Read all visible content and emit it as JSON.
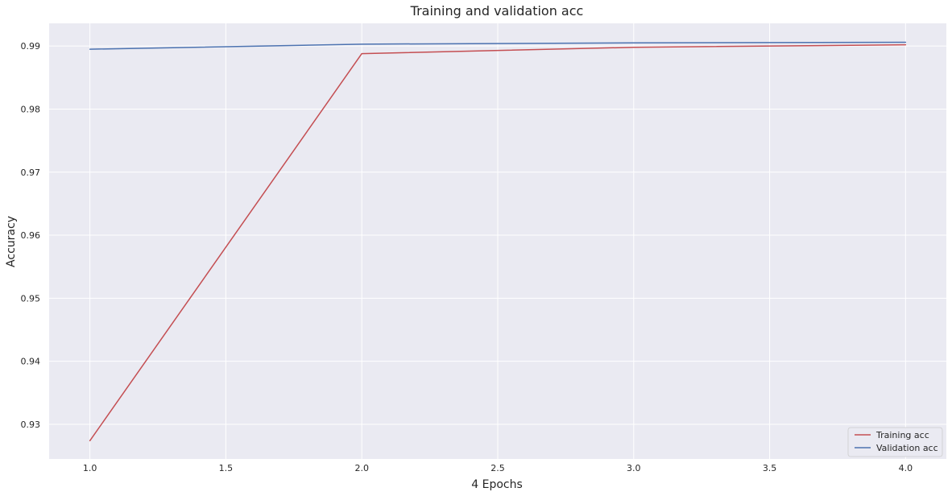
{
  "chart_data": {
    "type": "line",
    "title": "Training and validation acc",
    "xlabel": "4 Epochs",
    "ylabel": "Accuracy",
    "x": [
      1.0,
      2.0,
      3.0,
      4.0
    ],
    "xlim": [
      0.85,
      4.15
    ],
    "ylim": [
      0.9245,
      0.9936
    ],
    "xticks": [
      1.0,
      1.5,
      2.0,
      2.5,
      3.0,
      3.5,
      4.0
    ],
    "xtick_labels": [
      "1.0",
      "1.5",
      "2.0",
      "2.5",
      "3.0",
      "3.5",
      "4.0"
    ],
    "yticks": [
      0.93,
      0.94,
      0.95,
      0.96,
      0.97,
      0.98,
      0.99
    ],
    "ytick_labels": [
      "0.93",
      "0.94",
      "0.95",
      "0.96",
      "0.97",
      "0.98",
      "0.99"
    ],
    "grid": true,
    "legend": "lower-right",
    "series": [
      {
        "name": "Training acc",
        "values": [
          0.9274,
          0.9888,
          0.9898,
          0.9902
        ],
        "color": "#c44e52"
      },
      {
        "name": "Validation acc",
        "values": [
          0.9895,
          0.9903,
          0.9905,
          0.9906
        ],
        "color": "#4c72b0"
      }
    ],
    "colors": {
      "background": "#eaeaf2",
      "grid": "#ffffff"
    }
  }
}
